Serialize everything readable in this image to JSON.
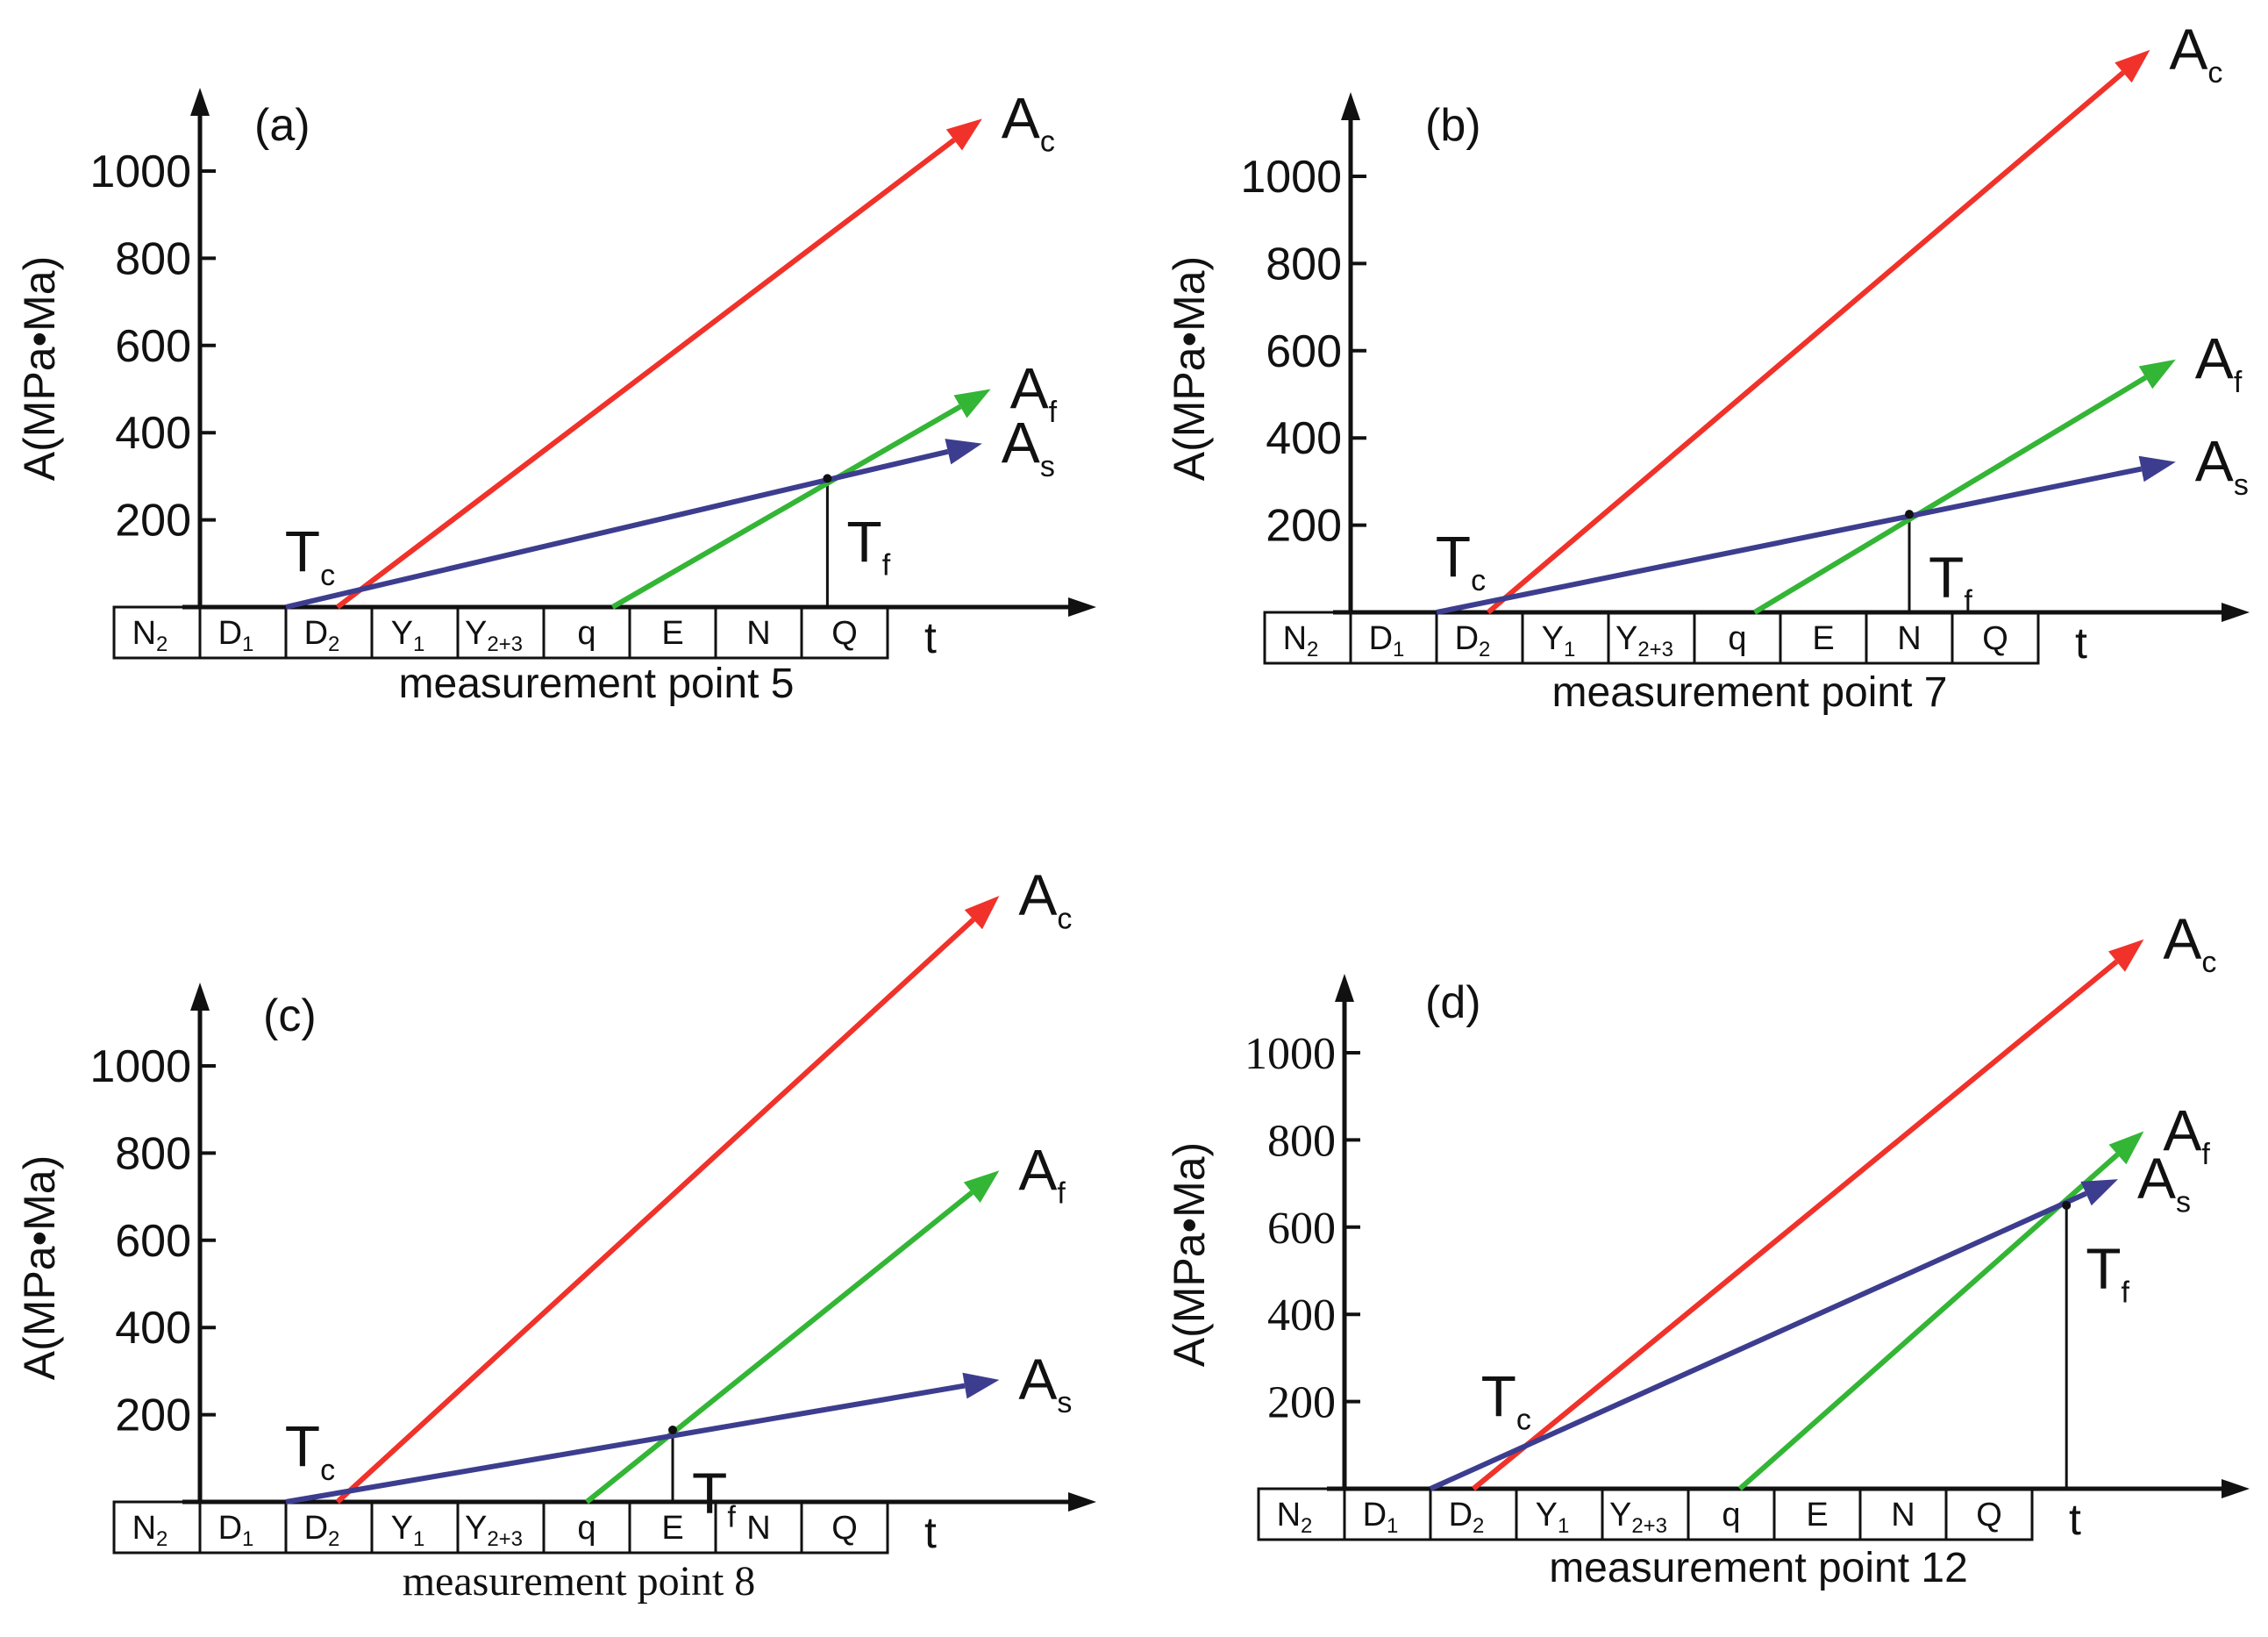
{
  "chart_data": [
    {
      "type": "line",
      "panel_label": "(a)",
      "caption": "measurement point 5",
      "ylabel": "A(MPa•Ma)",
      "xlabel": "t",
      "y_ticks": [
        "200",
        "400",
        "600",
        "800",
        "1000"
      ],
      "stages": [
        "N",
        "D",
        "D",
        "Y",
        "Y",
        "q",
        "E",
        "N",
        "Q"
      ],
      "stage_subscripts": [
        "2",
        "1",
        "2",
        "1",
        "2+3",
        "",
        "",
        "",
        ""
      ],
      "ylim": [
        0,
        1150
      ],
      "series": [
        {
          "name": "A",
          "subscript": "c",
          "color": "#f0322a",
          "x": [
            1.6,
            9.1
          ],
          "y": [
            0,
            1120
          ]
        },
        {
          "name": "A",
          "subscript": "f",
          "color": "#33b535",
          "x": [
            4.8,
            9.2
          ],
          "y": [
            0,
            500
          ]
        },
        {
          "name": "A",
          "subscript": "s",
          "color": "#3d3d8f",
          "x": [
            1.0,
            9.1
          ],
          "y": [
            0,
            375
          ]
        }
      ],
      "annotations": [
        {
          "text": "T",
          "subscript": "c",
          "x": 1.6,
          "y": 25
        },
        {
          "text": "T",
          "subscript": "f",
          "x": 7.3,
          "y": 295
        }
      ],
      "tf_marker": {
        "x": 7.3,
        "y": 295
      },
      "y_font": "sans"
    },
    {
      "type": "line",
      "panel_label": "(b)",
      "caption": "measurement point 7",
      "ylabel": "A(MPa•Ma)",
      "xlabel": "t",
      "y_ticks": [
        "200",
        "400",
        "600",
        "800",
        "1000"
      ],
      "stages": [
        "N",
        "D",
        "D",
        "Y",
        "Y",
        "q",
        "E",
        "N",
        "Q"
      ],
      "stage_subscripts": [
        "2",
        "1",
        "2",
        "1",
        "2+3",
        "",
        "",
        "",
        ""
      ],
      "ylim": [
        0,
        1150
      ],
      "series": [
        {
          "name": "A",
          "subscript": "c",
          "color": "#f0322a",
          "x": [
            1.6,
            9.3
          ],
          "y": [
            0,
            1290
          ]
        },
        {
          "name": "A",
          "subscript": "f",
          "color": "#33b535",
          "x": [
            4.7,
            9.6
          ],
          "y": [
            0,
            580
          ]
        },
        {
          "name": "A",
          "subscript": "s",
          "color": "#3d3d8f",
          "x": [
            1.0,
            9.6
          ],
          "y": [
            0,
            345
          ]
        }
      ],
      "annotations": [
        {
          "text": "T",
          "subscript": "c",
          "x": 1.6,
          "y": 25
        },
        {
          "text": "T",
          "subscript": "f",
          "x": 6.5,
          "y": 225
        }
      ],
      "tf_marker": {
        "x": 6.5,
        "y": 225
      },
      "y_font": "sans"
    },
    {
      "type": "line",
      "panel_label": "(c)",
      "caption": "measurement point 8",
      "ylabel": "A(MPa•Ma)",
      "xlabel": "t",
      "y_ticks": [
        "200",
        "400",
        "600",
        "800",
        "1000"
      ],
      "stages": [
        "N",
        "D",
        "D",
        "Y",
        "Y",
        "q",
        "E",
        "N",
        "Q"
      ],
      "stage_subscripts": [
        "2",
        "1",
        "2",
        "1",
        "2+3",
        "",
        "",
        "",
        ""
      ],
      "ylim": [
        0,
        1150
      ],
      "series": [
        {
          "name": "A",
          "subscript": "c",
          "color": "#f0322a",
          "x": [
            1.6,
            9.3
          ],
          "y": [
            0,
            1390
          ]
        },
        {
          "name": "A",
          "subscript": "f",
          "color": "#33b535",
          "x": [
            4.5,
            9.3
          ],
          "y": [
            0,
            760
          ]
        },
        {
          "name": "A",
          "subscript": "s",
          "color": "#3d3d8f",
          "x": [
            1.0,
            9.3
          ],
          "y": [
            0,
            280
          ]
        }
      ],
      "annotations": [
        {
          "text": "T",
          "subscript": "c",
          "x": 1.6,
          "y": 25
        },
        {
          "text": "T",
          "subscript": "f",
          "x": 5.5,
          "y": 165
        }
      ],
      "tf_marker": {
        "x": 5.5,
        "y": 165
      },
      "y_font": "sans"
    },
    {
      "type": "line",
      "panel_label": "(d)",
      "caption": "measurement point 12",
      "ylabel": "A(MPa•Ma)",
      "xlabel": "t",
      "y_ticks": [
        "200",
        "400",
        "600",
        "800",
        "1000"
      ],
      "stages": [
        "N",
        "D",
        "D",
        "Y",
        "Y",
        "q",
        "E",
        "N",
        "Q"
      ],
      "stage_subscripts": [
        "2",
        "1",
        "2",
        "1",
        "2+3",
        "",
        "",
        "",
        ""
      ],
      "ylim": [
        0,
        1150
      ],
      "series": [
        {
          "name": "A",
          "subscript": "c",
          "color": "#f0322a",
          "x": [
            1.5,
            9.3
          ],
          "y": [
            0,
            1260
          ]
        },
        {
          "name": "A",
          "subscript": "f",
          "color": "#33b535",
          "x": [
            4.6,
            9.3
          ],
          "y": [
            0,
            820
          ]
        },
        {
          "name": "A",
          "subscript": "s",
          "color": "#3d3d8f",
          "x": [
            1.0,
            9.0
          ],
          "y": [
            0,
            710
          ]
        }
      ],
      "annotations": [
        {
          "text": "T",
          "subscript": "c",
          "x": 2.2,
          "y": 110
        },
        {
          "text": "T",
          "subscript": "f",
          "x": 8.4,
          "y": 650
        }
      ],
      "tf_marker": {
        "x": 8.4,
        "y": 650
      },
      "y_font": "serif"
    }
  ]
}
